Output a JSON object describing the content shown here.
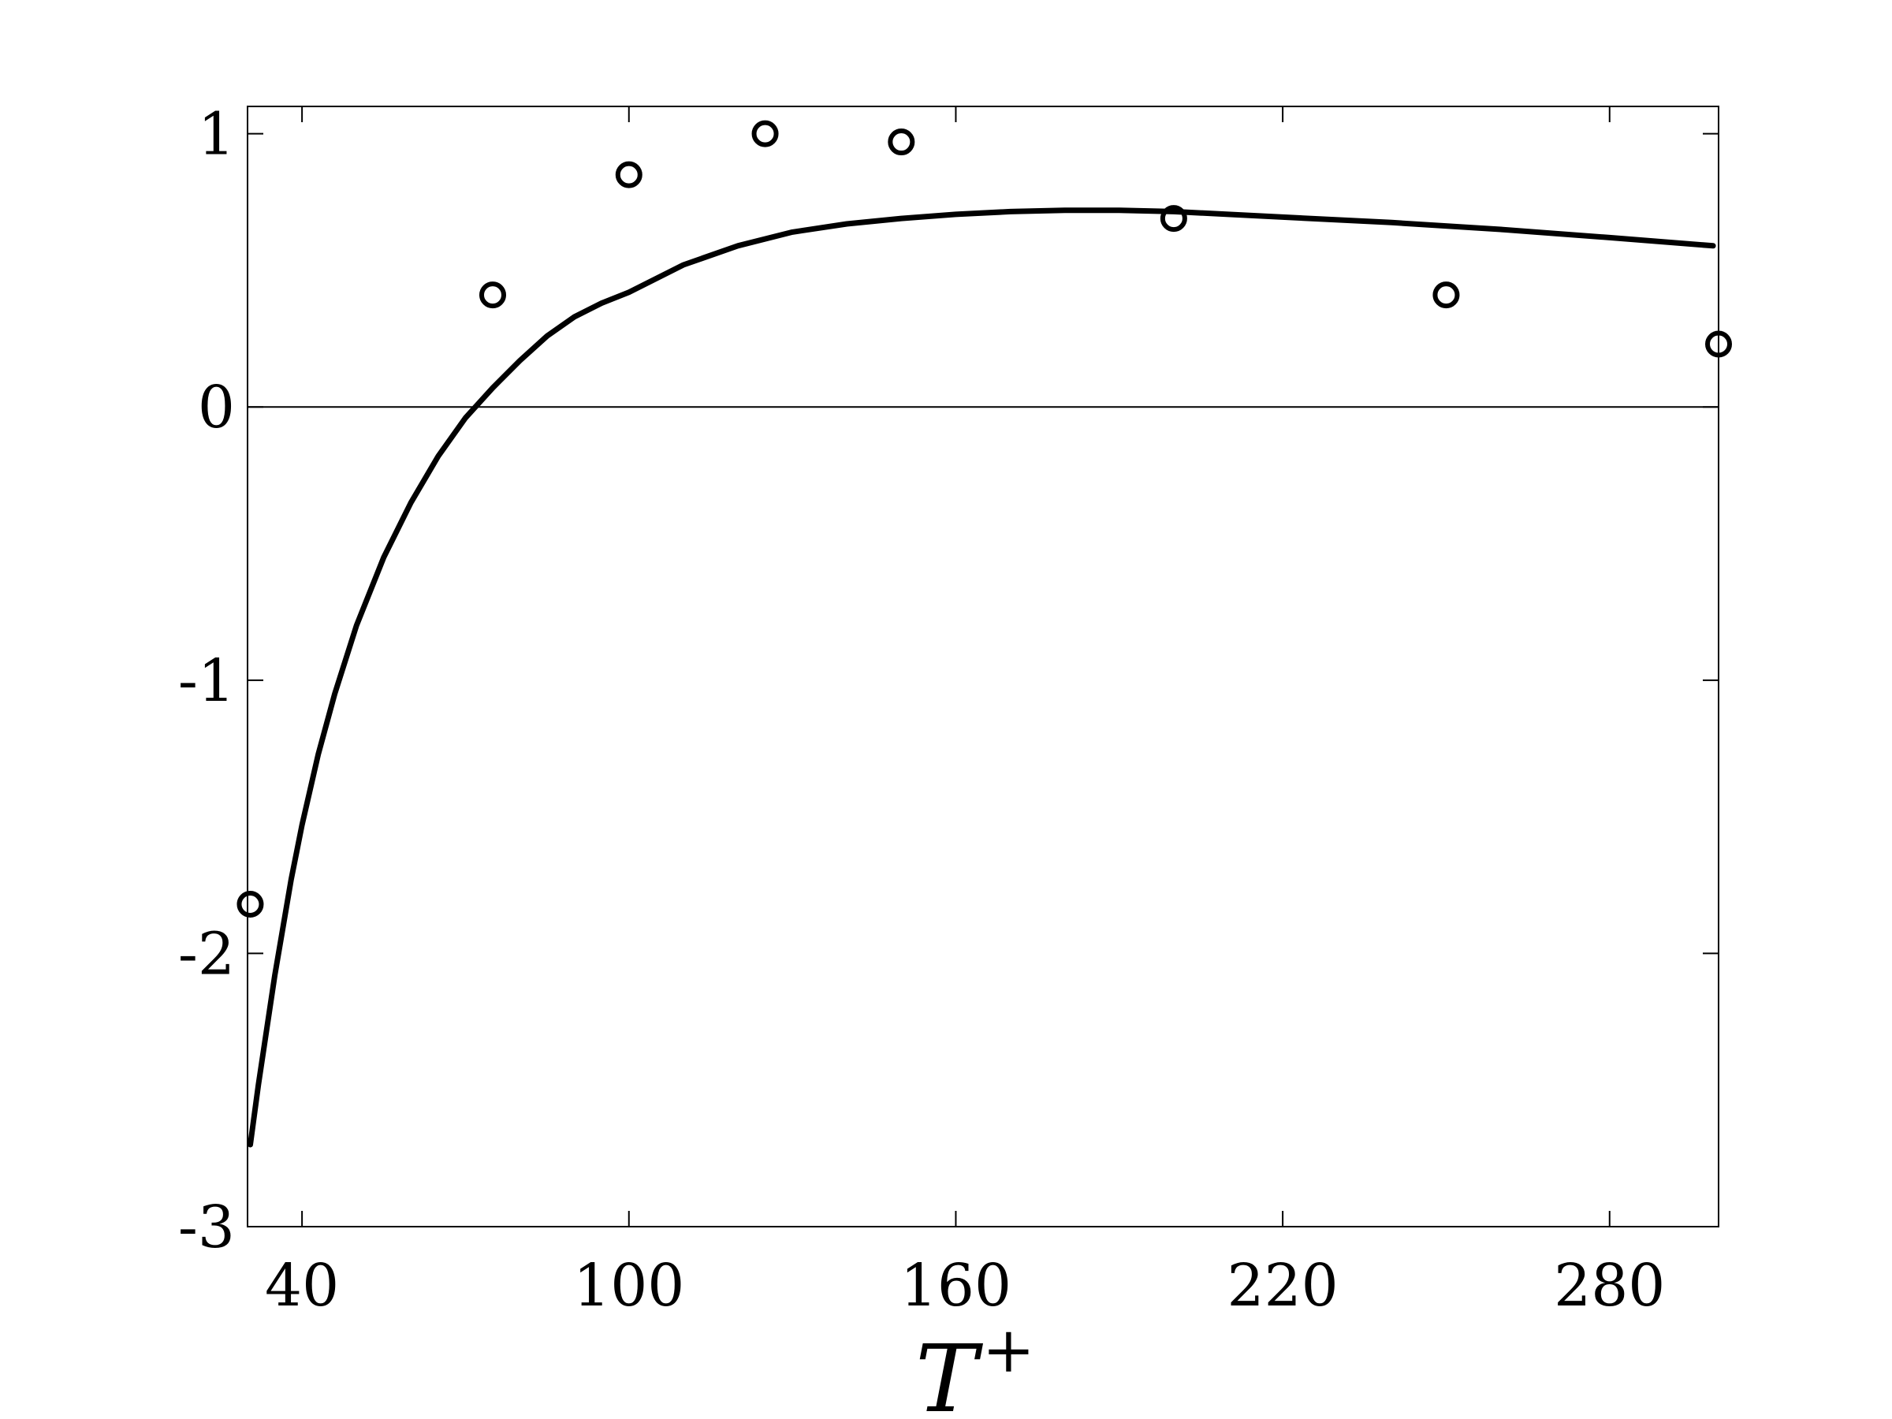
{
  "chart_data": {
    "type": "line",
    "title": "",
    "xlabel": "T",
    "xlabel_superscript": "+",
    "ylabel": "",
    "xlim": [
      30,
      300
    ],
    "ylim": [
      -3,
      1.1
    ],
    "x_ticks": [
      40,
      100,
      160,
      220,
      280
    ],
    "y_ticks": [
      -3,
      -2,
      -1,
      0,
      1
    ],
    "x_tick_labels": [
      "40",
      "100",
      "160",
      "220",
      "280"
    ],
    "y_tick_labels": [
      "-3",
      "-2",
      "-1",
      "0",
      "1"
    ],
    "zero_line": true,
    "grid": false,
    "legend": "none",
    "colors": {
      "ink": "#000000",
      "background": "#ffffff"
    },
    "series": [
      {
        "style": "line",
        "x": [
          30.5,
          32,
          35,
          38,
          40,
          43,
          46,
          50,
          55,
          60,
          65,
          70,
          75,
          80,
          85,
          90,
          95,
          100,
          110,
          120,
          130,
          140,
          150,
          160,
          170,
          180,
          190,
          200,
          210,
          220,
          240,
          260,
          280,
          299
        ],
        "y": [
          -2.7,
          -2.48,
          -2.08,
          -1.73,
          -1.53,
          -1.27,
          -1.05,
          -0.8,
          -0.55,
          -0.35,
          -0.18,
          -0.04,
          0.07,
          0.17,
          0.26,
          0.33,
          0.38,
          0.42,
          0.52,
          0.59,
          0.64,
          0.67,
          0.69,
          0.705,
          0.715,
          0.72,
          0.72,
          0.715,
          0.705,
          0.695,
          0.675,
          0.65,
          0.62,
          0.59
        ]
      },
      {
        "style": "markers",
        "x": [
          30.5,
          75,
          100,
          125,
          150,
          200,
          250,
          300
        ],
        "y": [
          -1.82,
          0.41,
          0.85,
          1.0,
          0.97,
          0.69,
          0.41,
          0.23
        ]
      }
    ]
  }
}
